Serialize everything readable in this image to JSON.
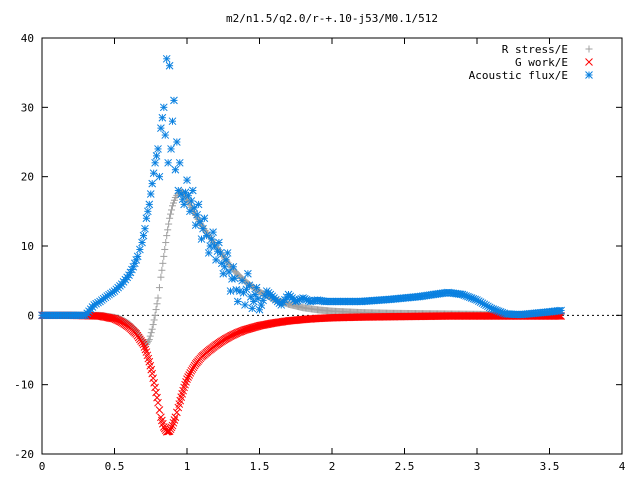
{
  "chart_data": {
    "type": "scatter",
    "title": "m2/n1.5/q2.0/r-+.10-j53/M0.1/512",
    "xlabel": "",
    "ylabel": "",
    "xlim": [
      0,
      4
    ],
    "ylim": [
      -20,
      40
    ],
    "xticks": [
      "0",
      "0.5",
      "1",
      "1.5",
      "2",
      "2.5",
      "3",
      "3.5",
      "4"
    ],
    "yticks": [
      "-20",
      "-10",
      "0",
      "10",
      "20",
      "30",
      "40"
    ],
    "grid": false,
    "legend_position": "top-right",
    "series": [
      {
        "name": "R stress/E",
        "marker": "+",
        "color": "#a0a0a0",
        "x": [
          0.0,
          0.2,
          0.4,
          0.5,
          0.55,
          0.6,
          0.65,
          0.7,
          0.72,
          0.74,
          0.76,
          0.78,
          0.8,
          0.82,
          0.84,
          0.86,
          0.88,
          0.9,
          0.92,
          0.94,
          0.96,
          0.98,
          1.0,
          1.03,
          1.06,
          1.1,
          1.15,
          1.2,
          1.25,
          1.3,
          1.35,
          1.4,
          1.5,
          1.6,
          1.7,
          1.8,
          1.9,
          2.0,
          2.2,
          2.4,
          2.6,
          2.8,
          3.0,
          3.2,
          3.4,
          3.58
        ],
        "y": [
          0.0,
          0.0,
          0.0,
          -0.3,
          -0.6,
          -1.2,
          -2.2,
          -3.8,
          -4.2,
          -3.5,
          -2.0,
          0.0,
          2.5,
          5.5,
          8.5,
          11.5,
          14.0,
          15.8,
          17.0,
          17.6,
          17.8,
          17.5,
          16.8,
          15.6,
          14.4,
          13.0,
          11.5,
          10.0,
          8.5,
          7.1,
          5.9,
          4.9,
          3.4,
          2.3,
          1.6,
          1.1,
          0.8,
          0.6,
          0.4,
          0.3,
          0.25,
          0.2,
          0.15,
          0.1,
          0.1,
          0.1
        ]
      },
      {
        "name": "G work/E",
        "marker": "x",
        "color": "#ff0000",
        "x": [
          0.0,
          0.2,
          0.4,
          0.5,
          0.55,
          0.6,
          0.65,
          0.7,
          0.72,
          0.74,
          0.76,
          0.78,
          0.8,
          0.82,
          0.84,
          0.86,
          0.88,
          0.9,
          0.92,
          0.94,
          0.96,
          0.98,
          1.0,
          1.03,
          1.06,
          1.1,
          1.15,
          1.2,
          1.25,
          1.3,
          1.35,
          1.4,
          1.5,
          1.6,
          1.7,
          1.8,
          1.9,
          2.0,
          2.2,
          2.4,
          2.6,
          2.8,
          3.0,
          3.2,
          3.4,
          3.58
        ],
        "y": [
          0.0,
          0.0,
          -0.1,
          -0.5,
          -1.0,
          -1.7,
          -2.7,
          -4.2,
          -5.3,
          -6.7,
          -8.4,
          -10.4,
          -12.6,
          -14.7,
          -16.1,
          -16.8,
          -16.7,
          -15.9,
          -14.7,
          -13.3,
          -11.8,
          -10.4,
          -9.2,
          -8.0,
          -7.0,
          -6.0,
          -5.1,
          -4.3,
          -3.6,
          -3.0,
          -2.5,
          -2.1,
          -1.5,
          -1.1,
          -0.8,
          -0.6,
          -0.45,
          -0.35,
          -0.25,
          -0.2,
          -0.15,
          -0.1,
          -0.1,
          -0.1,
          -0.1,
          -0.1
        ]
      },
      {
        "name": "Acoustic flux/E",
        "marker": "*",
        "color": "#0a80e0",
        "x": [
          0.0,
          0.1,
          0.2,
          0.3,
          0.36,
          0.4,
          0.45,
          0.5,
          0.55,
          0.6,
          0.63,
          0.66,
          0.69,
          0.71,
          0.72,
          0.74,
          0.76,
          0.78,
          0.8,
          0.81,
          0.82,
          0.84,
          0.85,
          0.86,
          0.87,
          0.88,
          0.89,
          0.9,
          0.91,
          0.92,
          0.93,
          0.94,
          0.95,
          0.96,
          0.98,
          1.0,
          1.02,
          1.04,
          1.06,
          1.08,
          1.1,
          1.12,
          1.15,
          1.18,
          1.2,
          1.22,
          1.25,
          1.28,
          1.3,
          1.32,
          1.35,
          1.38,
          1.4,
          1.42,
          1.45,
          1.48,
          1.5,
          1.55,
          1.6,
          1.65,
          1.7,
          1.75,
          1.8,
          1.85,
          1.9,
          1.95,
          2.0,
          2.2,
          2.4,
          2.6,
          2.7,
          2.8,
          2.9,
          3.0,
          3.1,
          3.2,
          3.3,
          3.4,
          3.5,
          3.58
        ],
        "y": [
          0.0,
          0.0,
          0.0,
          0.0,
          1.5,
          2.0,
          2.8,
          3.5,
          4.5,
          5.8,
          7.0,
          8.5,
          10.5,
          12.5,
          14.0,
          16.0,
          19.0,
          22.0,
          24.0,
          20.0,
          27.0,
          30.0,
          26.0,
          37.0,
          22.0,
          36.0,
          24.0,
          28.0,
          31.0,
          21.0,
          25.0,
          18.0,
          22.0,
          17.5,
          16.0,
          19.5,
          15.0,
          18.0,
          13.0,
          16.0,
          11.0,
          14.0,
          9.0,
          12.0,
          8.0,
          10.5,
          6.0,
          9.0,
          3.5,
          7.0,
          2.0,
          5.0,
          1.5,
          6.0,
          1.0,
          4.0,
          0.8,
          3.5,
          2.5,
          1.5,
          3.0,
          2.0,
          2.5,
          2.0,
          2.2,
          2.0,
          2.0,
          2.0,
          2.3,
          2.7,
          3.0,
          3.3,
          3.0,
          2.2,
          1.0,
          0.2,
          0.1,
          0.3,
          0.5,
          0.7
        ]
      }
    ]
  }
}
